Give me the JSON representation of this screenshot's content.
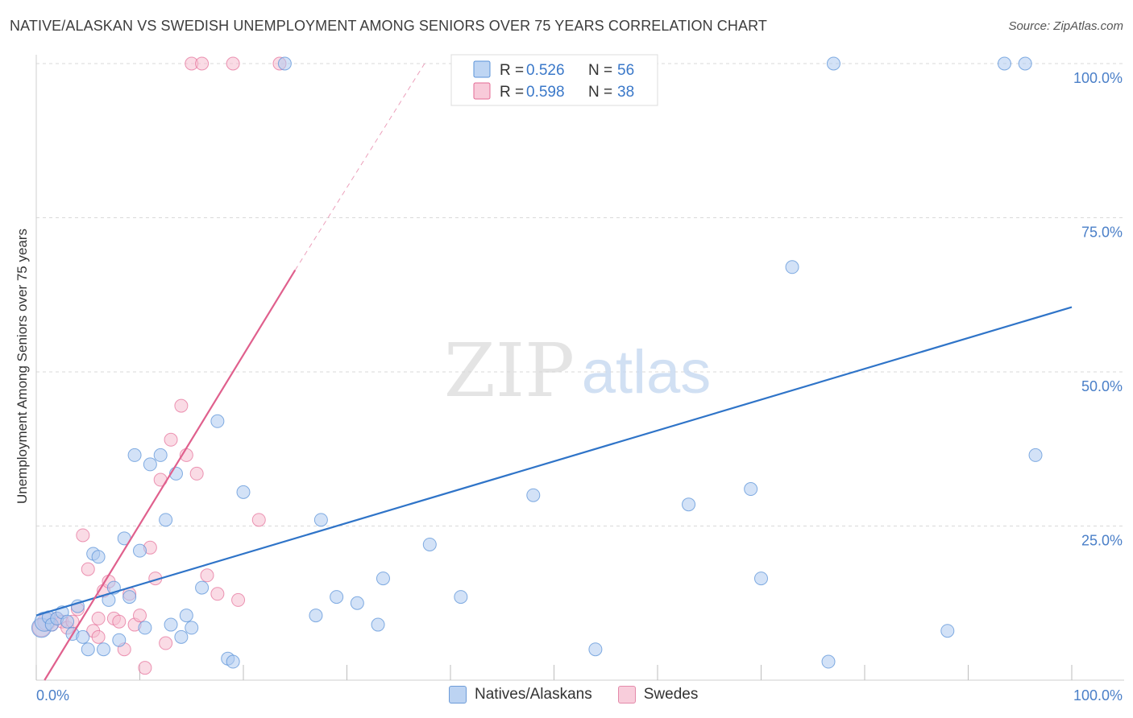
{
  "title": "NATIVE/ALASKAN VS SWEDISH UNEMPLOYMENT AMONG SENIORS OVER 75 YEARS CORRELATION CHART",
  "source": "Source: ZipAtlas.com",
  "watermark": {
    "zip": "ZIP",
    "atlas": "atlas"
  },
  "colors": {
    "blue": "#5b93d8",
    "blue_fill": "#aecbf0",
    "blue_line": "#2f74c8",
    "pink": "#e46b95",
    "pink_fill": "#f6bdd0",
    "pink_line": "#e0608d",
    "tick_label": "#4a7fc8"
  },
  "chart_data": {
    "type": "scatter",
    "title": "NATIVE/ALASKAN VS SWEDISH UNEMPLOYMENT AMONG SENIORS OVER 75 YEARS CORRELATION CHART",
    "xlabel": "",
    "ylabel": "Unemployment Among Seniors over 75 years",
    "xlim": [
      0,
      100
    ],
    "ylim": [
      0,
      100
    ],
    "x_tick_labels": [
      "0.0%",
      "100.0%"
    ],
    "y_ticks": [
      25,
      50,
      75,
      100
    ],
    "y_tick_labels": [
      "25.0%",
      "50.0%",
      "75.0%",
      "100.0%"
    ],
    "stats": [
      {
        "series": "Natives/Alaskans",
        "r_label": "R =",
        "r": "0.526",
        "n_label": "N =",
        "n": "56"
      },
      {
        "series": "Swedes",
        "r_label": "R =",
        "r": "0.598",
        "n_label": "N =",
        "n": "38"
      }
    ],
    "series": [
      {
        "name": "Natives/Alaskans",
        "color": "blue",
        "trend": {
          "x": [
            0,
            100
          ],
          "y": [
            10.5,
            60.5
          ],
          "dashed_extension": false
        },
        "points": [
          [
            0.5,
            8.5
          ],
          [
            0.8,
            9.5
          ],
          [
            1.2,
            10.2
          ],
          [
            1.5,
            9.0
          ],
          [
            2.0,
            10.0
          ],
          [
            2.5,
            11.0
          ],
          [
            3.0,
            9.5
          ],
          [
            3.5,
            7.5
          ],
          [
            4.0,
            12.0
          ],
          [
            4.5,
            7.0
          ],
          [
            5.0,
            5.0
          ],
          [
            5.5,
            20.5
          ],
          [
            6.0,
            20.0
          ],
          [
            6.5,
            5.0
          ],
          [
            7.0,
            13.0
          ],
          [
            7.5,
            15.0
          ],
          [
            8.0,
            6.5
          ],
          [
            8.5,
            23.0
          ],
          [
            9.0,
            13.5
          ],
          [
            9.5,
            36.5
          ],
          [
            10.0,
            21.0
          ],
          [
            10.5,
            8.5
          ],
          [
            11.0,
            35.0
          ],
          [
            12.0,
            36.5
          ],
          [
            12.5,
            26.0
          ],
          [
            13.0,
            9.0
          ],
          [
            13.5,
            33.5
          ],
          [
            14.0,
            7.0
          ],
          [
            14.5,
            10.5
          ],
          [
            15.0,
            8.5
          ],
          [
            16.0,
            15.0
          ],
          [
            17.5,
            42.0
          ],
          [
            18.5,
            3.5
          ],
          [
            19.0,
            3.0
          ],
          [
            20.0,
            30.5
          ],
          [
            24.0,
            100
          ],
          [
            27.0,
            10.5
          ],
          [
            27.5,
            26.0
          ],
          [
            29.0,
            13.5
          ],
          [
            31.0,
            12.5
          ],
          [
            33.0,
            9.0
          ],
          [
            33.5,
            16.5
          ],
          [
            38.0,
            22.0
          ],
          [
            41.0,
            13.5
          ],
          [
            48.0,
            30.0
          ],
          [
            54.0,
            5.0
          ],
          [
            63.0,
            28.5
          ],
          [
            69.0,
            31.0
          ],
          [
            70.0,
            16.5
          ],
          [
            73.0,
            67.0
          ],
          [
            76.5,
            3.0
          ],
          [
            77.0,
            100
          ],
          [
            88.0,
            8.0
          ],
          [
            93.5,
            100
          ],
          [
            95.5,
            100
          ],
          [
            96.5,
            36.5
          ]
        ]
      },
      {
        "name": "Swedes",
        "color": "pink",
        "trend": {
          "x": [
            0.8,
            25
          ],
          "y": [
            0,
            66.5
          ],
          "dashed_to": [
            37.5,
            100
          ]
        },
        "points": [
          [
            0.5,
            8.5
          ],
          [
            1.0,
            9.5
          ],
          [
            1.5,
            9.0
          ],
          [
            2.0,
            10.0
          ],
          [
            2.5,
            9.5
          ],
          [
            3.0,
            8.5
          ],
          [
            3.5,
            9.5
          ],
          [
            4.0,
            11.5
          ],
          [
            4.5,
            23.5
          ],
          [
            5.0,
            18.0
          ],
          [
            5.5,
            8.0
          ],
          [
            6.0,
            7.0
          ],
          [
            6.0,
            10.0
          ],
          [
            6.5,
            14.5
          ],
          [
            7.0,
            16.0
          ],
          [
            7.5,
            10.0
          ],
          [
            8.0,
            9.5
          ],
          [
            8.5,
            5.0
          ],
          [
            9.0,
            14.0
          ],
          [
            9.5,
            9.0
          ],
          [
            10.0,
            10.5
          ],
          [
            10.5,
            2.0
          ],
          [
            11.0,
            21.5
          ],
          [
            11.5,
            16.5
          ],
          [
            12.0,
            32.5
          ],
          [
            12.5,
            6.0
          ],
          [
            13.0,
            39.0
          ],
          [
            14.0,
            44.5
          ],
          [
            14.5,
            36.5
          ],
          [
            15.0,
            100
          ],
          [
            15.5,
            33.5
          ],
          [
            16.0,
            100
          ],
          [
            16.5,
            17.0
          ],
          [
            17.5,
            14.0
          ],
          [
            19.0,
            100
          ],
          [
            19.5,
            13.0
          ],
          [
            21.5,
            26.0
          ],
          [
            23.5,
            100
          ]
        ]
      }
    ]
  },
  "legend": {
    "items": [
      "Natives/Alaskans",
      "Swedes"
    ]
  }
}
